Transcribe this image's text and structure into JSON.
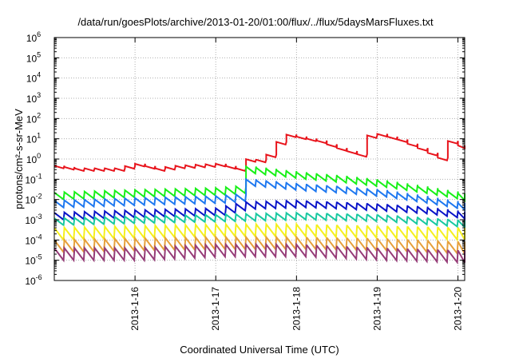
{
  "chart_data": {
    "type": "line",
    "title": "/data/run/goesPlots/archive/2013-01-20/01:00/flux/../flux/5daysMarsFluxes.txt",
    "xlabel": "Coordinated Universal Time (UTC)",
    "ylabel": "protons/cm²-s-sr-MeV",
    "yscale": "log",
    "ylim": [
      1e-06,
      1000000
    ],
    "xlim": [
      "2013-01-15 00:00",
      "2013-01-20 02:00"
    ],
    "x_ticks": [
      "2013-1-16",
      "2013-1-17",
      "2013-1-18",
      "2013-1-19",
      "2013-1-20"
    ],
    "y_ticks": [
      {
        "base": "10",
        "exp": "-6"
      },
      {
        "base": "10",
        "exp": "-5"
      },
      {
        "base": "10",
        "exp": "-4"
      },
      {
        "base": "10",
        "exp": "-3"
      },
      {
        "base": "10",
        "exp": "-2"
      },
      {
        "base": "10",
        "exp": "-1"
      },
      {
        "base": "10",
        "exp": "0"
      },
      {
        "base": "10",
        "exp": "1"
      },
      {
        "base": "10",
        "exp": "2"
      },
      {
        "base": "10",
        "exp": "3"
      },
      {
        "base": "10",
        "exp": "4"
      },
      {
        "base": "10",
        "exp": "5"
      },
      {
        "base": "10",
        "exp": "6"
      }
    ],
    "grid": true,
    "series": [
      {
        "color": "#e8141c",
        "values": [
          [
            "2013-01-15 00:00",
            0.4
          ],
          [
            "2013-01-15 06:00",
            0.3
          ],
          [
            "2013-01-15 12:00",
            0.3
          ],
          [
            "2013-01-15 18:00",
            0.3
          ],
          [
            "2013-01-16 00:00",
            0.5
          ],
          [
            "2013-01-16 06:00",
            0.3
          ],
          [
            "2013-01-16 12:00",
            0.4
          ],
          [
            "2013-01-16 18:00",
            0.45
          ],
          [
            "2013-01-17 00:00",
            0.5
          ],
          [
            "2013-01-17 06:00",
            0.3
          ],
          [
            "2013-01-17 10:00",
            1.2
          ],
          [
            "2013-01-17 12:00",
            0.8
          ],
          [
            "2013-01-17 14:00",
            2.0
          ],
          [
            "2013-01-17 16:00",
            1.0
          ],
          [
            "2013-01-17 18:00",
            6.0
          ],
          [
            "2013-01-17 20:00",
            15.0
          ],
          [
            "2013-01-18 06:00",
            7.0
          ],
          [
            "2013-01-18 12:00",
            3.0
          ],
          [
            "2013-01-18 18:00",
            1.5
          ],
          [
            "2013-01-18 20:00",
            12.0
          ],
          [
            "2013-01-19 00:00",
            15.0
          ],
          [
            "2013-01-19 06:00",
            8.0
          ],
          [
            "2013-01-19 12:00",
            3.0
          ],
          [
            "2013-01-19 18:00",
            1.0
          ],
          [
            "2013-01-19 20:00",
            8.0
          ],
          [
            "2013-01-20 00:00",
            4.0
          ],
          [
            "2013-01-20 02:00",
            2.0
          ]
        ]
      },
      {
        "color": "#18f018",
        "values": [
          [
            "2013-01-15 00:00",
            0.015
          ],
          [
            "2013-01-16 00:00",
            0.02
          ],
          [
            "2013-01-17 00:00",
            0.025
          ],
          [
            "2013-01-17 06:00",
            0.03
          ],
          [
            "2013-01-17 08:00",
            0.3
          ],
          [
            "2013-01-18 00:00",
            0.15
          ],
          [
            "2013-01-18 12:00",
            0.1
          ],
          [
            "2013-01-19 00:00",
            0.06
          ],
          [
            "2013-01-19 12:00",
            0.03
          ],
          [
            "2013-01-20 02:00",
            0.012
          ]
        ]
      },
      {
        "color": "#1e78f0",
        "values": [
          [
            "2013-01-15 00:00",
            0.006
          ],
          [
            "2013-01-16 00:00",
            0.008
          ],
          [
            "2013-01-17 00:00",
            0.01
          ],
          [
            "2013-01-17 06:00",
            0.012
          ],
          [
            "2013-01-17 08:00",
            0.07
          ],
          [
            "2013-01-18 00:00",
            0.04
          ],
          [
            "2013-01-18 12:00",
            0.03
          ],
          [
            "2013-01-19 00:00",
            0.02
          ],
          [
            "2013-01-19 12:00",
            0.01
          ],
          [
            "2013-01-20 02:00",
            0.004
          ]
        ]
      },
      {
        "color": "#0a14c8",
        "values": [
          [
            "2013-01-15 00:00",
            0.0015
          ],
          [
            "2013-01-16 00:00",
            0.002
          ],
          [
            "2013-01-17 00:00",
            0.0025
          ],
          [
            "2013-01-17 08:00",
            0.005
          ],
          [
            "2013-01-18 00:00",
            0.006
          ],
          [
            "2013-01-18 12:00",
            0.005
          ],
          [
            "2013-01-19 00:00",
            0.004
          ],
          [
            "2013-01-19 12:00",
            0.003
          ],
          [
            "2013-01-20 02:00",
            0.0015
          ]
        ]
      },
      {
        "color": "#18c8a0",
        "values": [
          [
            "2013-01-15 00:00",
            0.0008
          ],
          [
            "2013-01-16 00:00",
            0.001
          ],
          [
            "2013-01-17 00:00",
            0.0012
          ],
          [
            "2013-01-18 00:00",
            0.0015
          ],
          [
            "2013-01-19 00:00",
            0.0012
          ],
          [
            "2013-01-20 02:00",
            0.0006
          ]
        ]
      },
      {
        "color": "#f5f01e",
        "values": [
          [
            "2013-01-15 00:00",
            0.0002
          ],
          [
            "2013-01-16 00:00",
            0.00025
          ],
          [
            "2013-01-17 00:00",
            0.0003
          ],
          [
            "2013-01-18 00:00",
            0.0003
          ],
          [
            "2013-01-19 00:00",
            0.00025
          ],
          [
            "2013-01-20 02:00",
            0.0002
          ]
        ]
      },
      {
        "color": "#e6a03c",
        "values": [
          [
            "2013-01-15 00:00",
            5e-05
          ],
          [
            "2013-01-16 00:00",
            6e-05
          ],
          [
            "2013-01-17 00:00",
            7e-05
          ],
          [
            "2013-01-18 00:00",
            7e-05
          ],
          [
            "2013-01-19 00:00",
            6e-05
          ],
          [
            "2013-01-20 02:00",
            4e-05
          ]
        ]
      },
      {
        "color": "#963c78",
        "values": [
          [
            "2013-01-15 00:00",
            2e-05
          ],
          [
            "2013-01-16 00:00",
            2e-05
          ],
          [
            "2013-01-17 00:00",
            3e-05
          ],
          [
            "2013-01-18 00:00",
            3e-05
          ],
          [
            "2013-01-19 00:00",
            2e-05
          ],
          [
            "2013-01-20 02:00",
            1.5e-05
          ]
        ]
      }
    ]
  }
}
